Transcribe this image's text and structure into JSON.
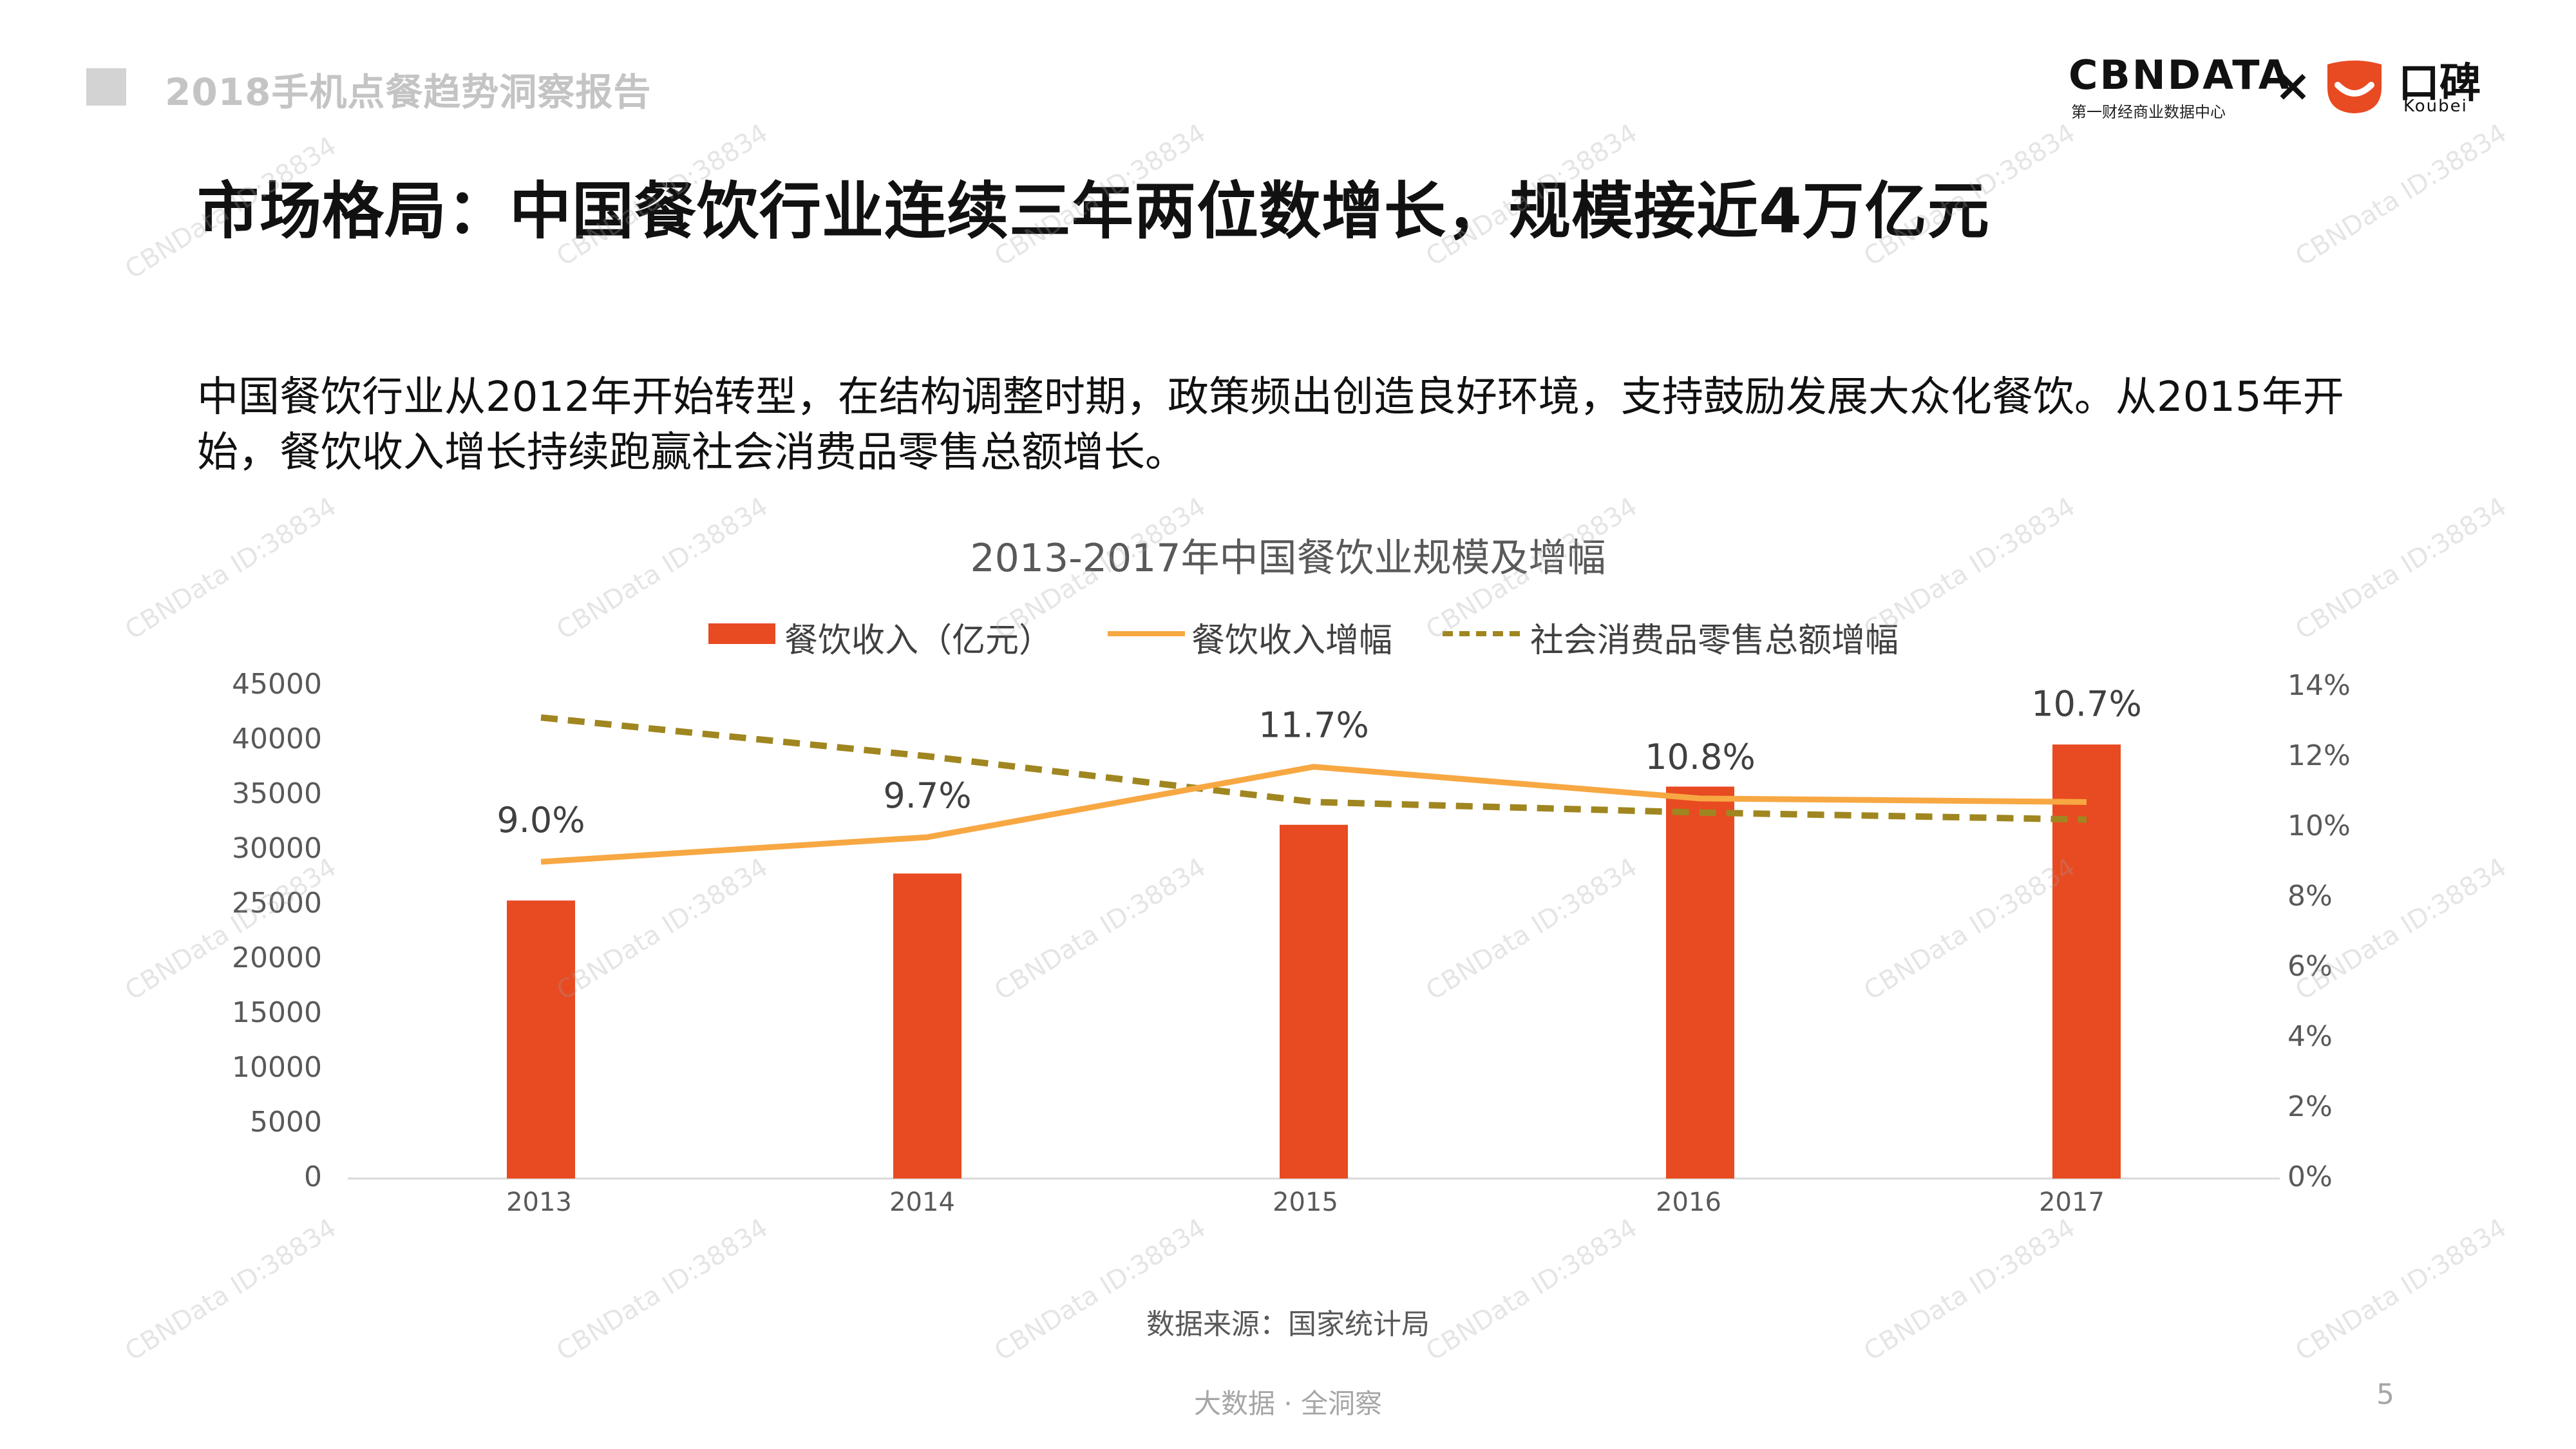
{
  "header": {
    "report_title": "2018手机点餐趋势洞察报告",
    "cbn_logo_text": "CBNDATA",
    "cbn_sub": "第一财经商业数据中心",
    "times": "×",
    "koubei_cn": "口碑",
    "koubei_en": "Koubei",
    "colors": {
      "koubei_brand": "#e84a21"
    }
  },
  "slide": {
    "title": "市场格局：中国餐饮行业连续三年两位数增长，规模接近4万亿元",
    "intro": "中国餐饮行业从2012年开始转型，在结构调整时期，政策频出创造良好环境，支持鼓励发展大众化餐饮。从2015年开始，餐饮收入增长持续跑赢社会消费品零售总额增长。",
    "source": "数据来源：国家统计局",
    "footer": "大数据 · 全洞察",
    "page_number": "5"
  },
  "watermark": "CBNData ID:38834",
  "chart_data": {
    "type": "bar",
    "title": "2013-2017年中国餐饮业规模及增幅",
    "categories": [
      "2013",
      "2014",
      "2015",
      "2016",
      "2017"
    ],
    "series": [
      {
        "name": "餐饮收入（亿元）",
        "type": "bar",
        "axis": "left",
        "color": "#e84a21",
        "values": [
          25392,
          27860,
          32310,
          35799,
          39644
        ]
      },
      {
        "name": "餐饮收入增幅",
        "type": "line",
        "axis": "right",
        "color": "#f7a843",
        "values": [
          9.0,
          9.7,
          11.7,
          10.8,
          10.7
        ],
        "labels": [
          "9.0%",
          "9.7%",
          "11.7%",
          "10.8%",
          "10.7%"
        ]
      },
      {
        "name": "社会消费品零售总额增幅",
        "type": "line",
        "style": "dashed",
        "axis": "right",
        "color": "#a08620",
        "values": [
          13.1,
          12.0,
          10.7,
          10.4,
          10.2
        ]
      }
    ],
    "y_left": {
      "min": 0,
      "max": 45000,
      "ticks": [
        "0",
        "5000",
        "10000",
        "15000",
        "20000",
        "25000",
        "30000",
        "35000",
        "40000",
        "45000"
      ]
    },
    "y_right": {
      "min": 0,
      "max": 14,
      "ticks": [
        "0%",
        "2%",
        "4%",
        "6%",
        "8%",
        "10%",
        "12%",
        "14%"
      ]
    },
    "grid": false,
    "legend_position": "top"
  }
}
